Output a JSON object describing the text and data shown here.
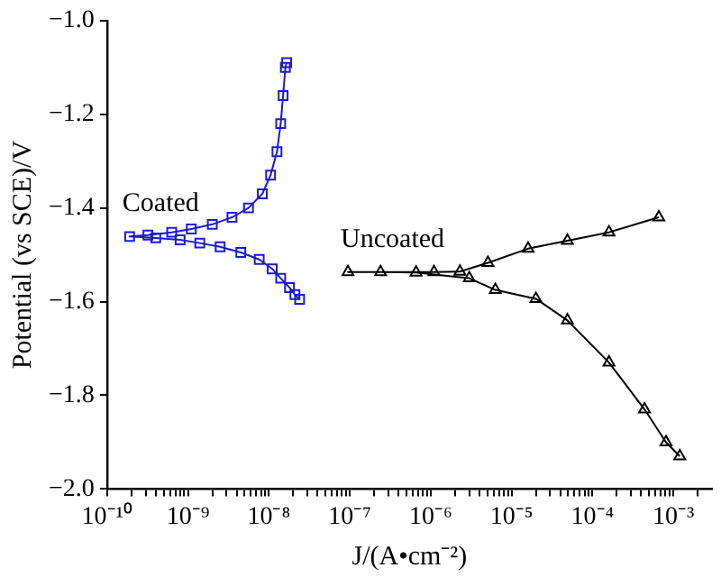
{
  "chart_data": {
    "type": "line",
    "xlabel": "J/(A•cm⁻²)",
    "ylabel": "Potential (vs SCE)/V",
    "log": "x",
    "grid": false,
    "legend": false,
    "line_style": "solid",
    "xlim": [
      1e-10,
      0.003
    ],
    "xticks": [
      {
        "value": 1e-10,
        "label": "10⁻¹⁰"
      },
      {
        "value": 2e-10,
        "label": null
      },
      {
        "value": 3e-10,
        "label": null
      },
      {
        "value": 4e-10,
        "label": null
      },
      {
        "value": 5e-10,
        "label": null
      },
      {
        "value": 6e-10,
        "label": null
      },
      {
        "value": 7e-10,
        "label": null
      },
      {
        "value": 8e-10,
        "label": null
      },
      {
        "value": 9e-10,
        "label": null
      },
      {
        "value": 1e-09,
        "label": "10⁻⁹"
      },
      {
        "value": 2e-09,
        "label": null
      },
      {
        "value": 3e-09,
        "label": null
      },
      {
        "value": 4e-09,
        "label": null
      },
      {
        "value": 5e-09,
        "label": null
      },
      {
        "value": 6e-09,
        "label": null
      },
      {
        "value": 7e-09,
        "label": null
      },
      {
        "value": 8e-09,
        "label": null
      },
      {
        "value": 9e-09,
        "label": null
      },
      {
        "value": 1e-08,
        "label": "10⁻⁸"
      },
      {
        "value": 2e-08,
        "label": null
      },
      {
        "value": 3e-08,
        "label": null
      },
      {
        "value": 4e-08,
        "label": null
      },
      {
        "value": 5e-08,
        "label": null
      },
      {
        "value": 6e-08,
        "label": null
      },
      {
        "value": 7e-08,
        "label": null
      },
      {
        "value": 8e-08,
        "label": null
      },
      {
        "value": 9e-08,
        "label": null
      },
      {
        "value": 1e-07,
        "label": "10⁻⁷"
      },
      {
        "value": 2e-07,
        "label": null
      },
      {
        "value": 3e-07,
        "label": null
      },
      {
        "value": 4e-07,
        "label": null
      },
      {
        "value": 5e-07,
        "label": null
      },
      {
        "value": 6e-07,
        "label": null
      },
      {
        "value": 7e-07,
        "label": null
      },
      {
        "value": 8e-07,
        "label": null
      },
      {
        "value": 9e-07,
        "label": null
      },
      {
        "value": 1e-06,
        "label": "10⁻⁶"
      },
      {
        "value": 2e-06,
        "label": null
      },
      {
        "value": 3e-06,
        "label": null
      },
      {
        "value": 4e-06,
        "label": null
      },
      {
        "value": 5e-06,
        "label": null
      },
      {
        "value": 6e-06,
        "label": null
      },
      {
        "value": 7e-06,
        "label": null
      },
      {
        "value": 8e-06,
        "label": null
      },
      {
        "value": 9e-06,
        "label": null
      },
      {
        "value": 1e-05,
        "label": "10⁻⁵"
      },
      {
        "value": 2e-05,
        "label": null
      },
      {
        "value": 3e-05,
        "label": null
      },
      {
        "value": 4e-05,
        "label": null
      },
      {
        "value": 5e-05,
        "label": null
      },
      {
        "value": 6e-05,
        "label": null
      },
      {
        "value": 7e-05,
        "label": null
      },
      {
        "value": 8e-05,
        "label": null
      },
      {
        "value": 9e-05,
        "label": null
      },
      {
        "value": 0.0001,
        "label": "10⁻⁴"
      },
      {
        "value": 0.0002,
        "label": null
      },
      {
        "value": 0.0003,
        "label": null
      },
      {
        "value": 0.0004,
        "label": null
      },
      {
        "value": 0.0005,
        "label": null
      },
      {
        "value": 0.0006,
        "label": null
      },
      {
        "value": 0.0007,
        "label": null
      },
      {
        "value": 0.0008,
        "label": null
      },
      {
        "value": 0.0009,
        "label": null
      },
      {
        "value": 0.001,
        "label": "10⁻³"
      },
      {
        "value": 0.002,
        "label": null
      }
    ],
    "ylim": [
      -2.0,
      -1.0
    ],
    "yticks": [
      {
        "value": -2.0,
        "label": "−2.0"
      },
      {
        "value": -1.8,
        "label": "−1.8"
      },
      {
        "value": -1.6,
        "label": "−1.6"
      },
      {
        "value": -1.4,
        "label": "−1.4"
      },
      {
        "value": -1.2,
        "label": "−1.2"
      },
      {
        "value": -1.0,
        "label": "−1.0"
      }
    ],
    "series": [
      {
        "name": "Coated",
        "color": "#1a1ad0",
        "marker": "square",
        "x": [
          2.4e-08,
          2.1e-08,
          1.8e-08,
          1.4e-08,
          1.1e-08,
          7.6e-09,
          4.5e-09,
          2.5e-09,
          1.4e-09,
          8e-10,
          4e-10,
          1.9e-10,
          3.2e-10,
          6.3e-10,
          1.1e-09,
          2e-09,
          3.5e-09,
          5.6e-09,
          8.3e-09,
          1.05e-08,
          1.26e-08,
          1.4e-08,
          1.5e-08,
          1.6e-08,
          1.66e-08
        ],
        "values": [
          -1.595,
          -1.585,
          -1.57,
          -1.55,
          -1.53,
          -1.51,
          -1.495,
          -1.483,
          -1.475,
          -1.468,
          -1.464,
          -1.461,
          -1.458,
          -1.452,
          -1.445,
          -1.435,
          -1.42,
          -1.4,
          -1.37,
          -1.33,
          -1.28,
          -1.22,
          -1.16,
          -1.1,
          -1.09
        ]
      },
      {
        "name": "Uncoated",
        "color": "#000000",
        "marker": "triangle",
        "x": [
          0.0012,
          0.00081,
          0.00044,
          0.00016,
          4.9e-05,
          2e-05,
          6.3e-06,
          3e-06,
          6.6e-07,
          2.4e-07,
          9.5e-08,
          1.1e-06,
          2.3e-06,
          5.1e-06,
          1.6e-05,
          4.9e-05,
          0.00016,
          0.00066
        ],
        "values": [
          -1.93,
          -1.9,
          -1.83,
          -1.73,
          -1.64,
          -1.594,
          -1.575,
          -1.55,
          -1.538,
          -1.537,
          -1.537,
          -1.537,
          -1.536,
          -1.517,
          -1.487,
          -1.47,
          -1.452,
          -1.42
        ]
      }
    ]
  }
}
